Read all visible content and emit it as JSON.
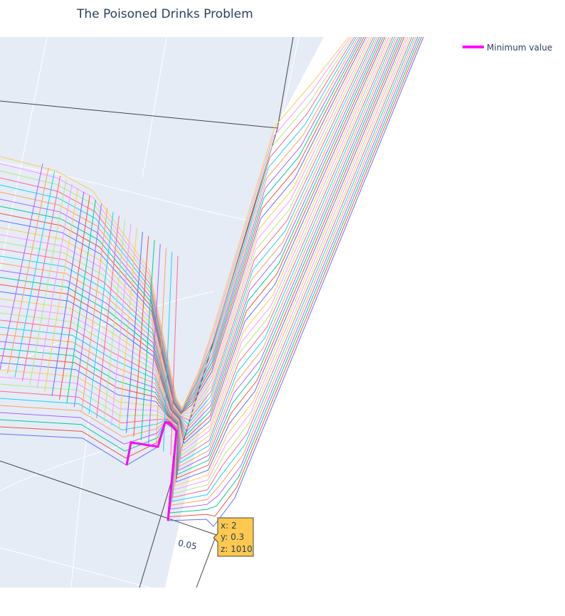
{
  "chart_data": {
    "type": "line",
    "title": "The Poisoned Drinks Problem",
    "legend": {
      "placement": "top-right",
      "entries": [
        {
          "name": "Minimum value",
          "color": "#ff00ff"
        }
      ]
    },
    "axes": {
      "y_tick_labels": [
        "0.05"
      ]
    },
    "series_count": 40,
    "series_colors": [
      "#636efa",
      "#EF553B",
      "#00cc96",
      "#ab63fa",
      "#FFA15A",
      "#19d3f3",
      "#FF6692",
      "#B6E880",
      "#FF97FF",
      "#FECB52"
    ],
    "minimum_value_line": {
      "name": "Minimum value",
      "color": "#ff00ff"
    },
    "hover": {
      "x_label": "x: 2",
      "y_label": "y: 0.3",
      "z_label": "z: 1010",
      "color": "#ffc84e"
    }
  }
}
